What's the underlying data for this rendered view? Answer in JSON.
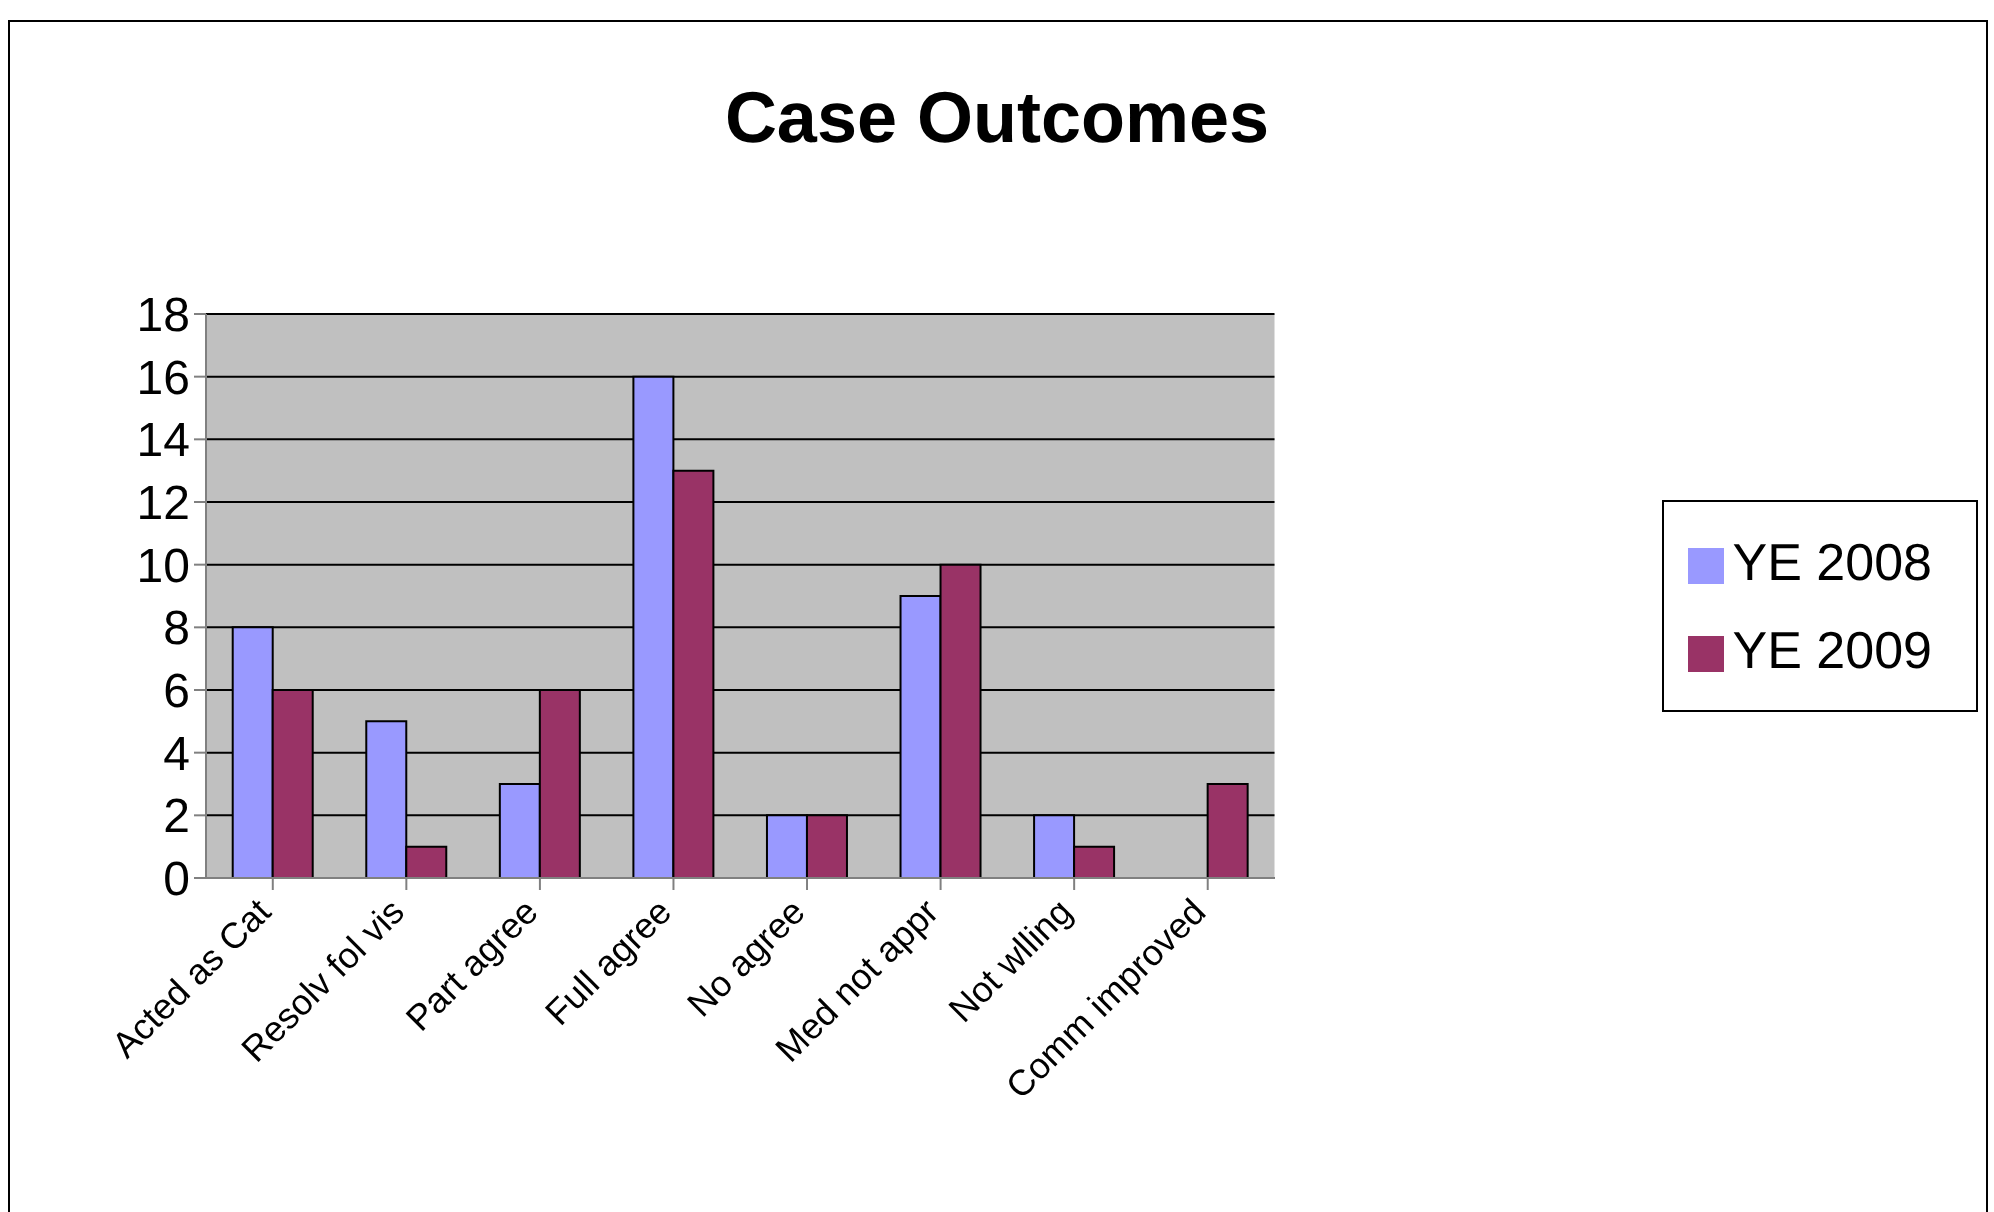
{
  "chart_data": {
    "type": "bar",
    "title": "Case Outcomes",
    "categories": [
      "Acted as Cat",
      "Resolv fol vis",
      "Part agree",
      "Full agree",
      "No agree",
      "Med not appr",
      "Not wlling",
      "Comm improved"
    ],
    "series": [
      {
        "name": "YE 2008",
        "color": "#9999ff",
        "values": [
          8,
          5,
          3,
          16,
          2,
          9,
          2,
          0
        ]
      },
      {
        "name": "YE 2009",
        "color": "#993366",
        "values": [
          6,
          1,
          6,
          13,
          2,
          10,
          1,
          3
        ]
      }
    ],
    "ylim": [
      0,
      18
    ],
    "yticks": [
      0,
      2,
      4,
      6,
      8,
      10,
      12,
      14,
      16,
      18
    ],
    "grid": "y",
    "legend": "right"
  }
}
